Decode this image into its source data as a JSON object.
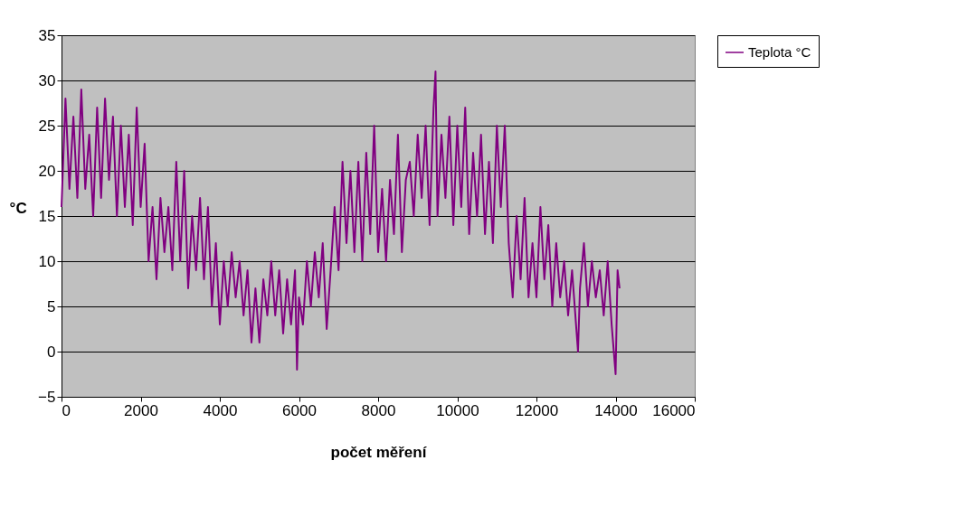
{
  "chart_data": {
    "type": "line",
    "xlabel": "počet měření",
    "ylabel": "°C",
    "x": [
      0,
      100,
      200,
      300,
      400,
      500,
      600,
      700,
      800,
      900,
      1000,
      1100,
      1200,
      1300,
      1400,
      1500,
      1600,
      1700,
      1800,
      1900,
      2000,
      2100,
      2200,
      2300,
      2400,
      2500,
      2600,
      2700,
      2800,
      2900,
      3000,
      3100,
      3200,
      3300,
      3400,
      3500,
      3600,
      3700,
      3800,
      3900,
      4000,
      4100,
      4200,
      4300,
      4400,
      4500,
      4600,
      4700,
      4800,
      4900,
      5000,
      5100,
      5200,
      5300,
      5400,
      5500,
      5600,
      5700,
      5800,
      5900,
      5950,
      6000,
      6100,
      6200,
      6300,
      6400,
      6500,
      6600,
      6700,
      6800,
      6900,
      7000,
      7100,
      7200,
      7300,
      7400,
      7500,
      7600,
      7700,
      7800,
      7900,
      8000,
      8100,
      8200,
      8300,
      8400,
      8500,
      8600,
      8700,
      8800,
      8900,
      9000,
      9100,
      9200,
      9300,
      9400,
      9450,
      9500,
      9600,
      9700,
      9800,
      9900,
      10000,
      10100,
      10200,
      10300,
      10400,
      10500,
      10600,
      10700,
      10800,
      10900,
      11000,
      11100,
      11200,
      11300,
      11400,
      11500,
      11600,
      11700,
      11800,
      11900,
      12000,
      12100,
      12200,
      12300,
      12400,
      12500,
      12600,
      12700,
      12800,
      12900,
      13000,
      13050,
      13100,
      13200,
      13300,
      13400,
      13500,
      13600,
      13700,
      13800,
      13900,
      14000,
      14050,
      14100
    ],
    "series": [
      {
        "name": "Teplota °C",
        "color": "#800080",
        "values": [
          16,
          28,
          18,
          26,
          17,
          29,
          18,
          24,
          15,
          27,
          17,
          28,
          19,
          26,
          15,
          25,
          16,
          24,
          14,
          27,
          16,
          23,
          10,
          16,
          8,
          17,
          11,
          16,
          9,
          21,
          10,
          20,
          7,
          15,
          9,
          17,
          8,
          16,
          5,
          12,
          3,
          10,
          5,
          11,
          6,
          10,
          4,
          9,
          1,
          7,
          1,
          8,
          4,
          10,
          4,
          9,
          2,
          8,
          3,
          9,
          -2,
          6,
          3,
          10,
          5,
          11,
          6,
          12,
          2.5,
          9,
          16,
          9,
          21,
          12,
          20,
          11,
          21,
          10,
          22,
          13,
          25,
          11,
          18,
          10,
          19,
          13,
          24,
          11,
          19,
          21,
          15,
          24,
          17,
          25,
          14,
          27,
          31,
          15,
          24,
          17,
          26,
          14,
          25,
          16,
          27,
          13,
          22,
          15,
          24,
          13,
          21,
          12,
          25,
          16,
          25,
          12,
          6,
          15,
          8,
          17,
          6,
          12,
          6,
          16,
          8,
          14,
          5,
          12,
          6,
          10,
          4,
          9,
          3,
          0,
          7,
          12,
          5,
          10,
          6,
          9,
          4,
          10,
          3,
          -2.5,
          9,
          7
        ]
      }
    ],
    "xlim": [
      0,
      16000
    ],
    "xticks": [
      0,
      2000,
      4000,
      6000,
      8000,
      10000,
      12000,
      14000,
      16000
    ],
    "ylim": [
      -5,
      35
    ],
    "yticks": [
      -5,
      0,
      5,
      10,
      15,
      20,
      25,
      30,
      35
    ],
    "grid": "y",
    "legend": "right",
    "marker": "none",
    "line_style": "solid"
  }
}
